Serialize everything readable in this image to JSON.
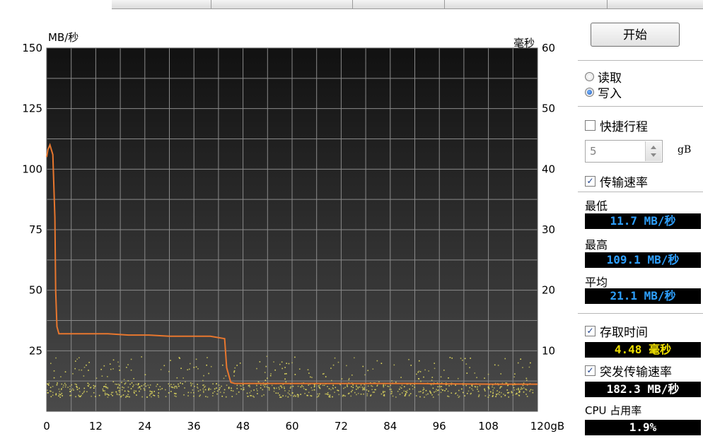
{
  "chart_data": {
    "type": "line",
    "y_left": {
      "unit_label": "MB/秒",
      "ticks": [
        "150",
        "125",
        "100",
        "75",
        "50",
        "25"
      ],
      "range": [
        0,
        150
      ]
    },
    "y_right": {
      "unit_label": "毫秒",
      "ticks": [
        "60",
        "50",
        "40",
        "30",
        "20",
        "10"
      ],
      "range": [
        0,
        60
      ]
    },
    "x_axis": {
      "ticks": [
        "0",
        "12",
        "24",
        "36",
        "48",
        "60",
        "72",
        "84",
        "96",
        "108",
        "120gB"
      ],
      "range": [
        0,
        120
      ]
    },
    "grid": true,
    "background": "#2a2a2a",
    "series": [
      {
        "color": "#e8772e",
        "x": [
          0,
          0.3,
          0.8,
          1.5,
          2.0,
          2.2,
          2.5,
          3,
          5,
          10,
          15,
          20,
          25,
          30,
          35,
          40,
          43.5,
          44,
          45,
          46,
          50,
          55,
          60,
          70,
          80,
          90,
          100,
          110,
          120
        ],
        "y": [
          105,
          108,
          110,
          106,
          80,
          50,
          35,
          32,
          32,
          32,
          32,
          31.5,
          31.5,
          31,
          31,
          31,
          30,
          18,
          12,
          11.5,
          11.5,
          11.5,
          11.5,
          11.5,
          11.5,
          11.5,
          11.3,
          11.2,
          11.2
        ]
      }
    ],
    "scatter_note_color": "#e8e060"
  },
  "panel": {
    "start_label": "开始",
    "read_label": "读取",
    "write_label": "写入",
    "short_stroke_label": "快捷行程",
    "short_stroke_value": "5",
    "short_stroke_unit": "gB",
    "transfer_rate_label": "传输速率",
    "min_label": "最低",
    "min_value": "11.7 MB/秒",
    "max_label": "最高",
    "max_value": "109.1 MB/秒",
    "avg_label": "平均",
    "avg_value": "21.1 MB/秒",
    "access_time_label": "存取时间",
    "access_time_value": "4.48 毫秒",
    "burst_rate_label": "突发传输速率",
    "burst_rate_value": "182.3 MB/秒",
    "cpu_label": "CPU 占用率",
    "cpu_value": "1.9%"
  }
}
